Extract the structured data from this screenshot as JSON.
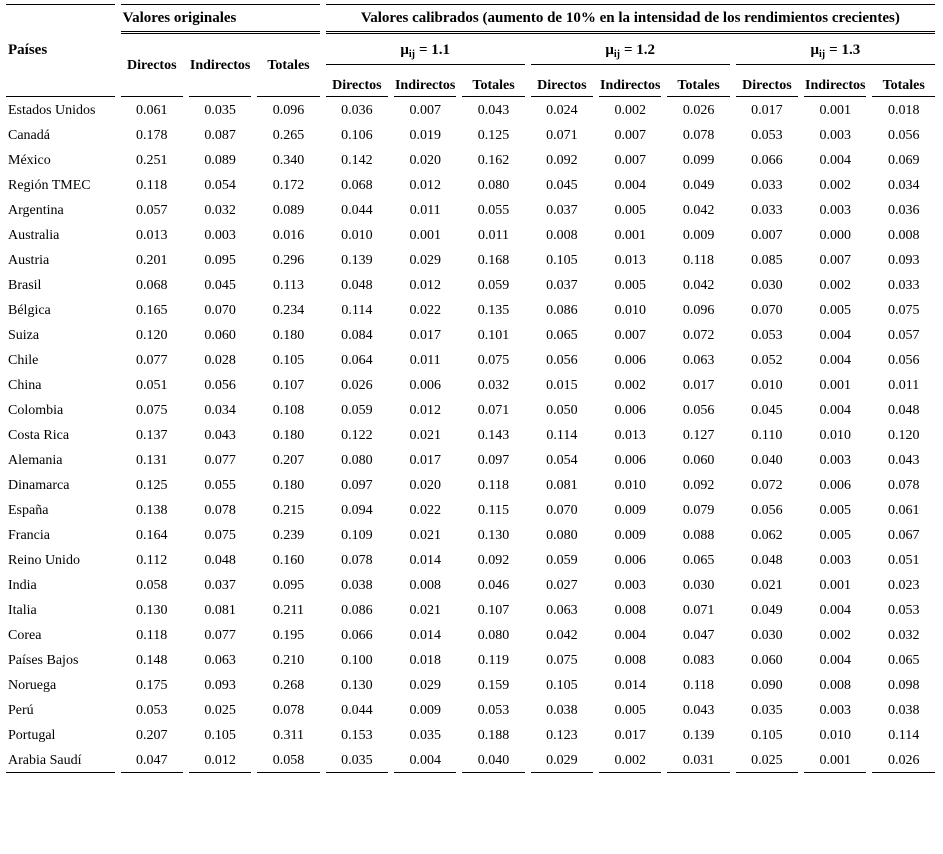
{
  "colors": {
    "text": "#000000",
    "background": "#ffffff",
    "rule": "#000000"
  },
  "table": {
    "country_header": "Países",
    "group_originales": "Valores originales",
    "group_calibrados": "Valores calibrados (aumento de 10% en la intensidad de los rendimientos crecientes)",
    "sub_headers": [
      "Directos",
      "Indirectos",
      "Totales"
    ],
    "mu_groups": [
      {
        "mu": "μ",
        "sub": "ij",
        "eq": "= 1.1"
      },
      {
        "mu": "μ",
        "sub": "ij",
        "eq": "= 1.2"
      },
      {
        "mu": "μ",
        "sub": "ij",
        "eq": "= 1.3"
      }
    ],
    "rows": [
      {
        "country": "Estados Unidos",
        "values": [
          "0.061",
          "0.035",
          "0.096",
          "0.036",
          "0.007",
          "0.043",
          "0.024",
          "0.002",
          "0.026",
          "0.017",
          "0.001",
          "0.018"
        ]
      },
      {
        "country": "Canadá",
        "values": [
          "0.178",
          "0.087",
          "0.265",
          "0.106",
          "0.019",
          "0.125",
          "0.071",
          "0.007",
          "0.078",
          "0.053",
          "0.003",
          "0.056"
        ]
      },
      {
        "country": "México",
        "values": [
          "0.251",
          "0.089",
          "0.340",
          "0.142",
          "0.020",
          "0.162",
          "0.092",
          "0.007",
          "0.099",
          "0.066",
          "0.004",
          "0.069"
        ]
      },
      {
        "country": "Región TMEC",
        "values": [
          "0.118",
          "0.054",
          "0.172",
          "0.068",
          "0.012",
          "0.080",
          "0.045",
          "0.004",
          "0.049",
          "0.033",
          "0.002",
          "0.034"
        ]
      },
      {
        "country": "Argentina",
        "values": [
          "0.057",
          "0.032",
          "0.089",
          "0.044",
          "0.011",
          "0.055",
          "0.037",
          "0.005",
          "0.042",
          "0.033",
          "0.003",
          "0.036"
        ]
      },
      {
        "country": "Australia",
        "values": [
          "0.013",
          "0.003",
          "0.016",
          "0.010",
          "0.001",
          "0.011",
          "0.008",
          "0.001",
          "0.009",
          "0.007",
          "0.000",
          "0.008"
        ]
      },
      {
        "country": "Austria",
        "values": [
          "0.201",
          "0.095",
          "0.296",
          "0.139",
          "0.029",
          "0.168",
          "0.105",
          "0.013",
          "0.118",
          "0.085",
          "0.007",
          "0.093"
        ]
      },
      {
        "country": "Brasil",
        "values": [
          "0.068",
          "0.045",
          "0.113",
          "0.048",
          "0.012",
          "0.059",
          "0.037",
          "0.005",
          "0.042",
          "0.030",
          "0.002",
          "0.033"
        ]
      },
      {
        "country": "Bélgica",
        "values": [
          "0.165",
          "0.070",
          "0.234",
          "0.114",
          "0.022",
          "0.135",
          "0.086",
          "0.010",
          "0.096",
          "0.070",
          "0.005",
          "0.075"
        ]
      },
      {
        "country": "Suiza",
        "values": [
          "0.120",
          "0.060",
          "0.180",
          "0.084",
          "0.017",
          "0.101",
          "0.065",
          "0.007",
          "0.072",
          "0.053",
          "0.004",
          "0.057"
        ]
      },
      {
        "country": "Chile",
        "values": [
          "0.077",
          "0.028",
          "0.105",
          "0.064",
          "0.011",
          "0.075",
          "0.056",
          "0.006",
          "0.063",
          "0.052",
          "0.004",
          "0.056"
        ]
      },
      {
        "country": "China",
        "values": [
          "0.051",
          "0.056",
          "0.107",
          "0.026",
          "0.006",
          "0.032",
          "0.015",
          "0.002",
          "0.017",
          "0.010",
          "0.001",
          "0.011"
        ]
      },
      {
        "country": "Colombia",
        "values": [
          "0.075",
          "0.034",
          "0.108",
          "0.059",
          "0.012",
          "0.071",
          "0.050",
          "0.006",
          "0.056",
          "0.045",
          "0.004",
          "0.048"
        ]
      },
      {
        "country": "Costa Rica",
        "values": [
          "0.137",
          "0.043",
          "0.180",
          "0.122",
          "0.021",
          "0.143",
          "0.114",
          "0.013",
          "0.127",
          "0.110",
          "0.010",
          "0.120"
        ]
      },
      {
        "country": "Alemania",
        "values": [
          "0.131",
          "0.077",
          "0.207",
          "0.080",
          "0.017",
          "0.097",
          "0.054",
          "0.006",
          "0.060",
          "0.040",
          "0.003",
          "0.043"
        ]
      },
      {
        "country": "Dinamarca",
        "values": [
          "0.125",
          "0.055",
          "0.180",
          "0.097",
          "0.020",
          "0.118",
          "0.081",
          "0.010",
          "0.092",
          "0.072",
          "0.006",
          "0.078"
        ]
      },
      {
        "country": "España",
        "values": [
          "0.138",
          "0.078",
          "0.215",
          "0.094",
          "0.022",
          "0.115",
          "0.070",
          "0.009",
          "0.079",
          "0.056",
          "0.005",
          "0.061"
        ]
      },
      {
        "country": "Francia",
        "values": [
          "0.164",
          "0.075",
          "0.239",
          "0.109",
          "0.021",
          "0.130",
          "0.080",
          "0.009",
          "0.088",
          "0.062",
          "0.005",
          "0.067"
        ]
      },
      {
        "country": "Reino Unido",
        "values": [
          "0.112",
          "0.048",
          "0.160",
          "0.078",
          "0.014",
          "0.092",
          "0.059",
          "0.006",
          "0.065",
          "0.048",
          "0.003",
          "0.051"
        ]
      },
      {
        "country": "India",
        "values": [
          "0.058",
          "0.037",
          "0.095",
          "0.038",
          "0.008",
          "0.046",
          "0.027",
          "0.003",
          "0.030",
          "0.021",
          "0.001",
          "0.023"
        ]
      },
      {
        "country": "Italia",
        "values": [
          "0.130",
          "0.081",
          "0.211",
          "0.086",
          "0.021",
          "0.107",
          "0.063",
          "0.008",
          "0.071",
          "0.049",
          "0.004",
          "0.053"
        ]
      },
      {
        "country": "Corea",
        "values": [
          "0.118",
          "0.077",
          "0.195",
          "0.066",
          "0.014",
          "0.080",
          "0.042",
          "0.004",
          "0.047",
          "0.030",
          "0.002",
          "0.032"
        ]
      },
      {
        "country": "Países Bajos",
        "values": [
          "0.148",
          "0.063",
          "0.210",
          "0.100",
          "0.018",
          "0.119",
          "0.075",
          "0.008",
          "0.083",
          "0.060",
          "0.004",
          "0.065"
        ]
      },
      {
        "country": "Noruega",
        "values": [
          "0.175",
          "0.093",
          "0.268",
          "0.130",
          "0.029",
          "0.159",
          "0.105",
          "0.014",
          "0.118",
          "0.090",
          "0.008",
          "0.098"
        ]
      },
      {
        "country": "Perú",
        "values": [
          "0.053",
          "0.025",
          "0.078",
          "0.044",
          "0.009",
          "0.053",
          "0.038",
          "0.005",
          "0.043",
          "0.035",
          "0.003",
          "0.038"
        ]
      },
      {
        "country": "Portugal",
        "values": [
          "0.207",
          "0.105",
          "0.311",
          "0.153",
          "0.035",
          "0.188",
          "0.123",
          "0.017",
          "0.139",
          "0.105",
          "0.010",
          "0.114"
        ]
      },
      {
        "country": "Arabia Saudí",
        "values": [
          "0.047",
          "0.012",
          "0.058",
          "0.035",
          "0.004",
          "0.040",
          "0.029",
          "0.002",
          "0.031",
          "0.025",
          "0.001",
          "0.026"
        ]
      }
    ]
  }
}
